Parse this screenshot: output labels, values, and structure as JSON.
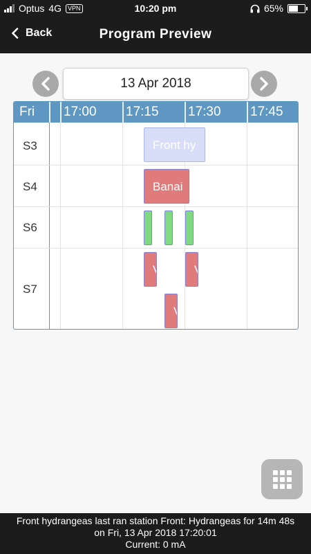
{
  "status_bar": {
    "carrier": "Optus",
    "network": "4G",
    "vpn": "VPN",
    "time": "10:20 pm",
    "battery": "65%",
    "battery_level": 0.65
  },
  "header": {
    "back_label": "Back",
    "title": "Program Preview"
  },
  "date_nav": {
    "date": "13 Apr 2018"
  },
  "schedule": {
    "day": "Fri",
    "times": [
      "17:00",
      "17:15",
      "17:30",
      "17:45"
    ],
    "stations": [
      {
        "label": "S3"
      },
      {
        "label": "S4"
      },
      {
        "label": "S6"
      },
      {
        "label": "S7"
      }
    ],
    "programs": [
      {
        "station": "S3",
        "text": "Front hy",
        "color": "#d8def7"
      },
      {
        "station": "S4",
        "text": "Banai",
        "color": "#e07b7b"
      },
      {
        "station": "S6",
        "text": "",
        "color": "#82d983"
      },
      {
        "station": "S6",
        "text": "",
        "color": "#82d983"
      },
      {
        "station": "S6",
        "text": "",
        "color": "#82d983"
      },
      {
        "station": "S7",
        "text": "V",
        "color": "#e07b7b"
      },
      {
        "station": "S7",
        "text": "V",
        "color": "#e07b7b"
      },
      {
        "station": "S7",
        "text": "V",
        "color": "#e07b7b"
      }
    ]
  },
  "footer": {
    "line1": "Front hydrangeas last ran station Front: Hydrangeas for 14m 48s",
    "line2": "on Fri, 13 Apr 2018 17:20:01",
    "line3": "Current: 0 mA"
  },
  "icons": {
    "back": "chevron-left-icon",
    "prev": "chevron-left-circle-icon",
    "next": "chevron-right-circle-icon",
    "menu": "grid-menu-icon"
  },
  "colors": {
    "grid_header": "#5f97c3",
    "bar_background": "#1c1c1c"
  }
}
